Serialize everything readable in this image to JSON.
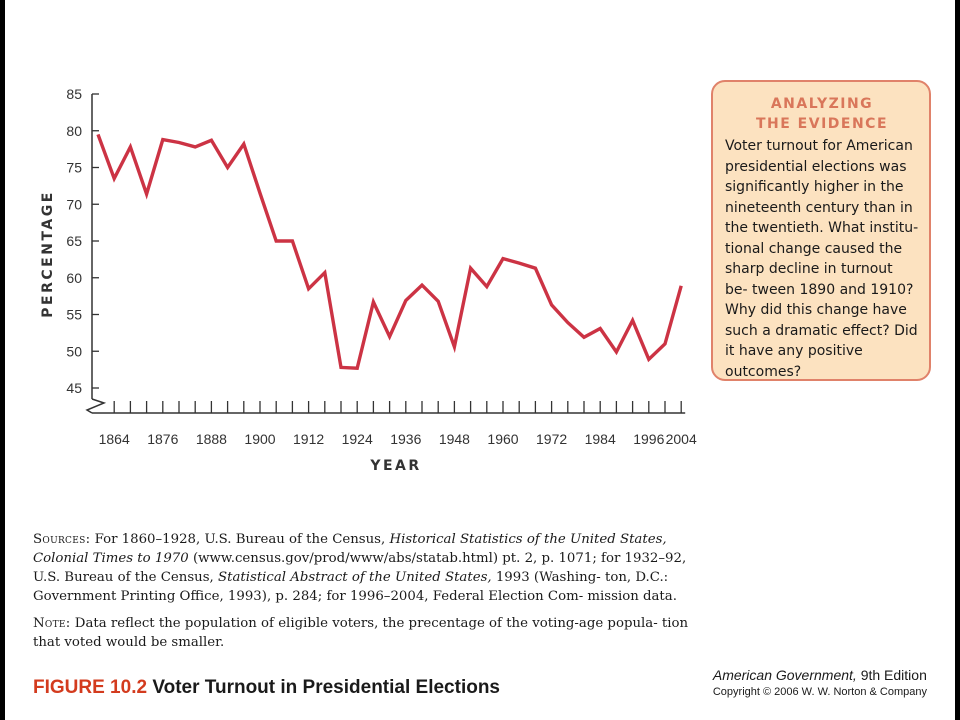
{
  "chart_data": {
    "type": "line",
    "xlabel": "YEAR",
    "ylabel": "PERCENTAGE",
    "ylim": [
      45,
      85
    ],
    "xlim": [
      1860,
      2004
    ],
    "y_ticks": [
      45,
      50,
      55,
      60,
      65,
      70,
      75,
      80,
      85
    ],
    "x_tick_labels": [
      1864,
      1876,
      1888,
      1900,
      1912,
      1924,
      1936,
      1948,
      1960,
      1972,
      1984,
      1996,
      2004
    ],
    "axis_break": true,
    "grid": false,
    "line_color": "#cc3344",
    "series": [
      {
        "x": [
          1860,
          1864,
          1868,
          1872,
          1876,
          1880,
          1884,
          1888,
          1892,
          1896,
          1900,
          1904,
          1908,
          1912,
          1916,
          1920,
          1924,
          1928,
          1932,
          1936,
          1940,
          1944,
          1948,
          1952,
          1956,
          1960,
          1964,
          1968,
          1972,
          1976,
          1980,
          1984,
          1988,
          1992,
          1996,
          2000,
          2004
        ],
        "y": [
          79.5,
          73.5,
          77.8,
          71.4,
          78.8,
          78.4,
          77.8,
          78.7,
          75.0,
          78.2,
          71.5,
          65.0,
          65.0,
          58.5,
          60.7,
          47.8,
          47.7,
          56.7,
          52.0,
          56.9,
          59.0,
          56.8,
          50.6,
          61.3,
          58.8,
          62.6,
          62.0,
          61.3,
          56.3,
          53.9,
          51.9,
          53.1,
          49.9,
          54.2,
          48.9,
          51.0,
          58.9
        ]
      }
    ]
  },
  "evidence_box": {
    "heading": "ANALYZING\nTHE EVIDENCE",
    "body": "Voter turnout for American presidential elections was significantly higher in the nineteenth century than in the twentieth. What institu- tional change caused the sharp decline in turnout be- tween 1890 and 1910? Why did this change have such a dramatic effect? Did it have any positive outcomes?"
  },
  "sources": {
    "label": "Sources:",
    "part1": " For 1860–1928, U.S. Bureau of the Census, ",
    "title1": "Historical Statistics of the United States, Colonial Times to 1970",
    "part2": " (www.census.gov/prod/www/abs/statab.html) pt. 2, p. 1071; for 1932–92, U.S. Bureau of the Census, ",
    "title2": "Statistical Abstract of the United States,",
    "part3": " 1993 (Washing- ton, D.C.: Government Printing Office, 1993), p. 284; for 1996–2004, Federal Election Com- mission data."
  },
  "note": {
    "label": "Note:",
    "text": " Data reflect the population of eligible voters,  the precentage of the voting-age popula- tion that voted would be smaller."
  },
  "figure": {
    "number": "FIGURE 10.2",
    "title": " Voter Turnout in Presidential Elections"
  },
  "book": {
    "title": "American Government,",
    "edition": " 9th Edition",
    "copyright": "Copyright © 2006 W. W. Norton & Company"
  }
}
